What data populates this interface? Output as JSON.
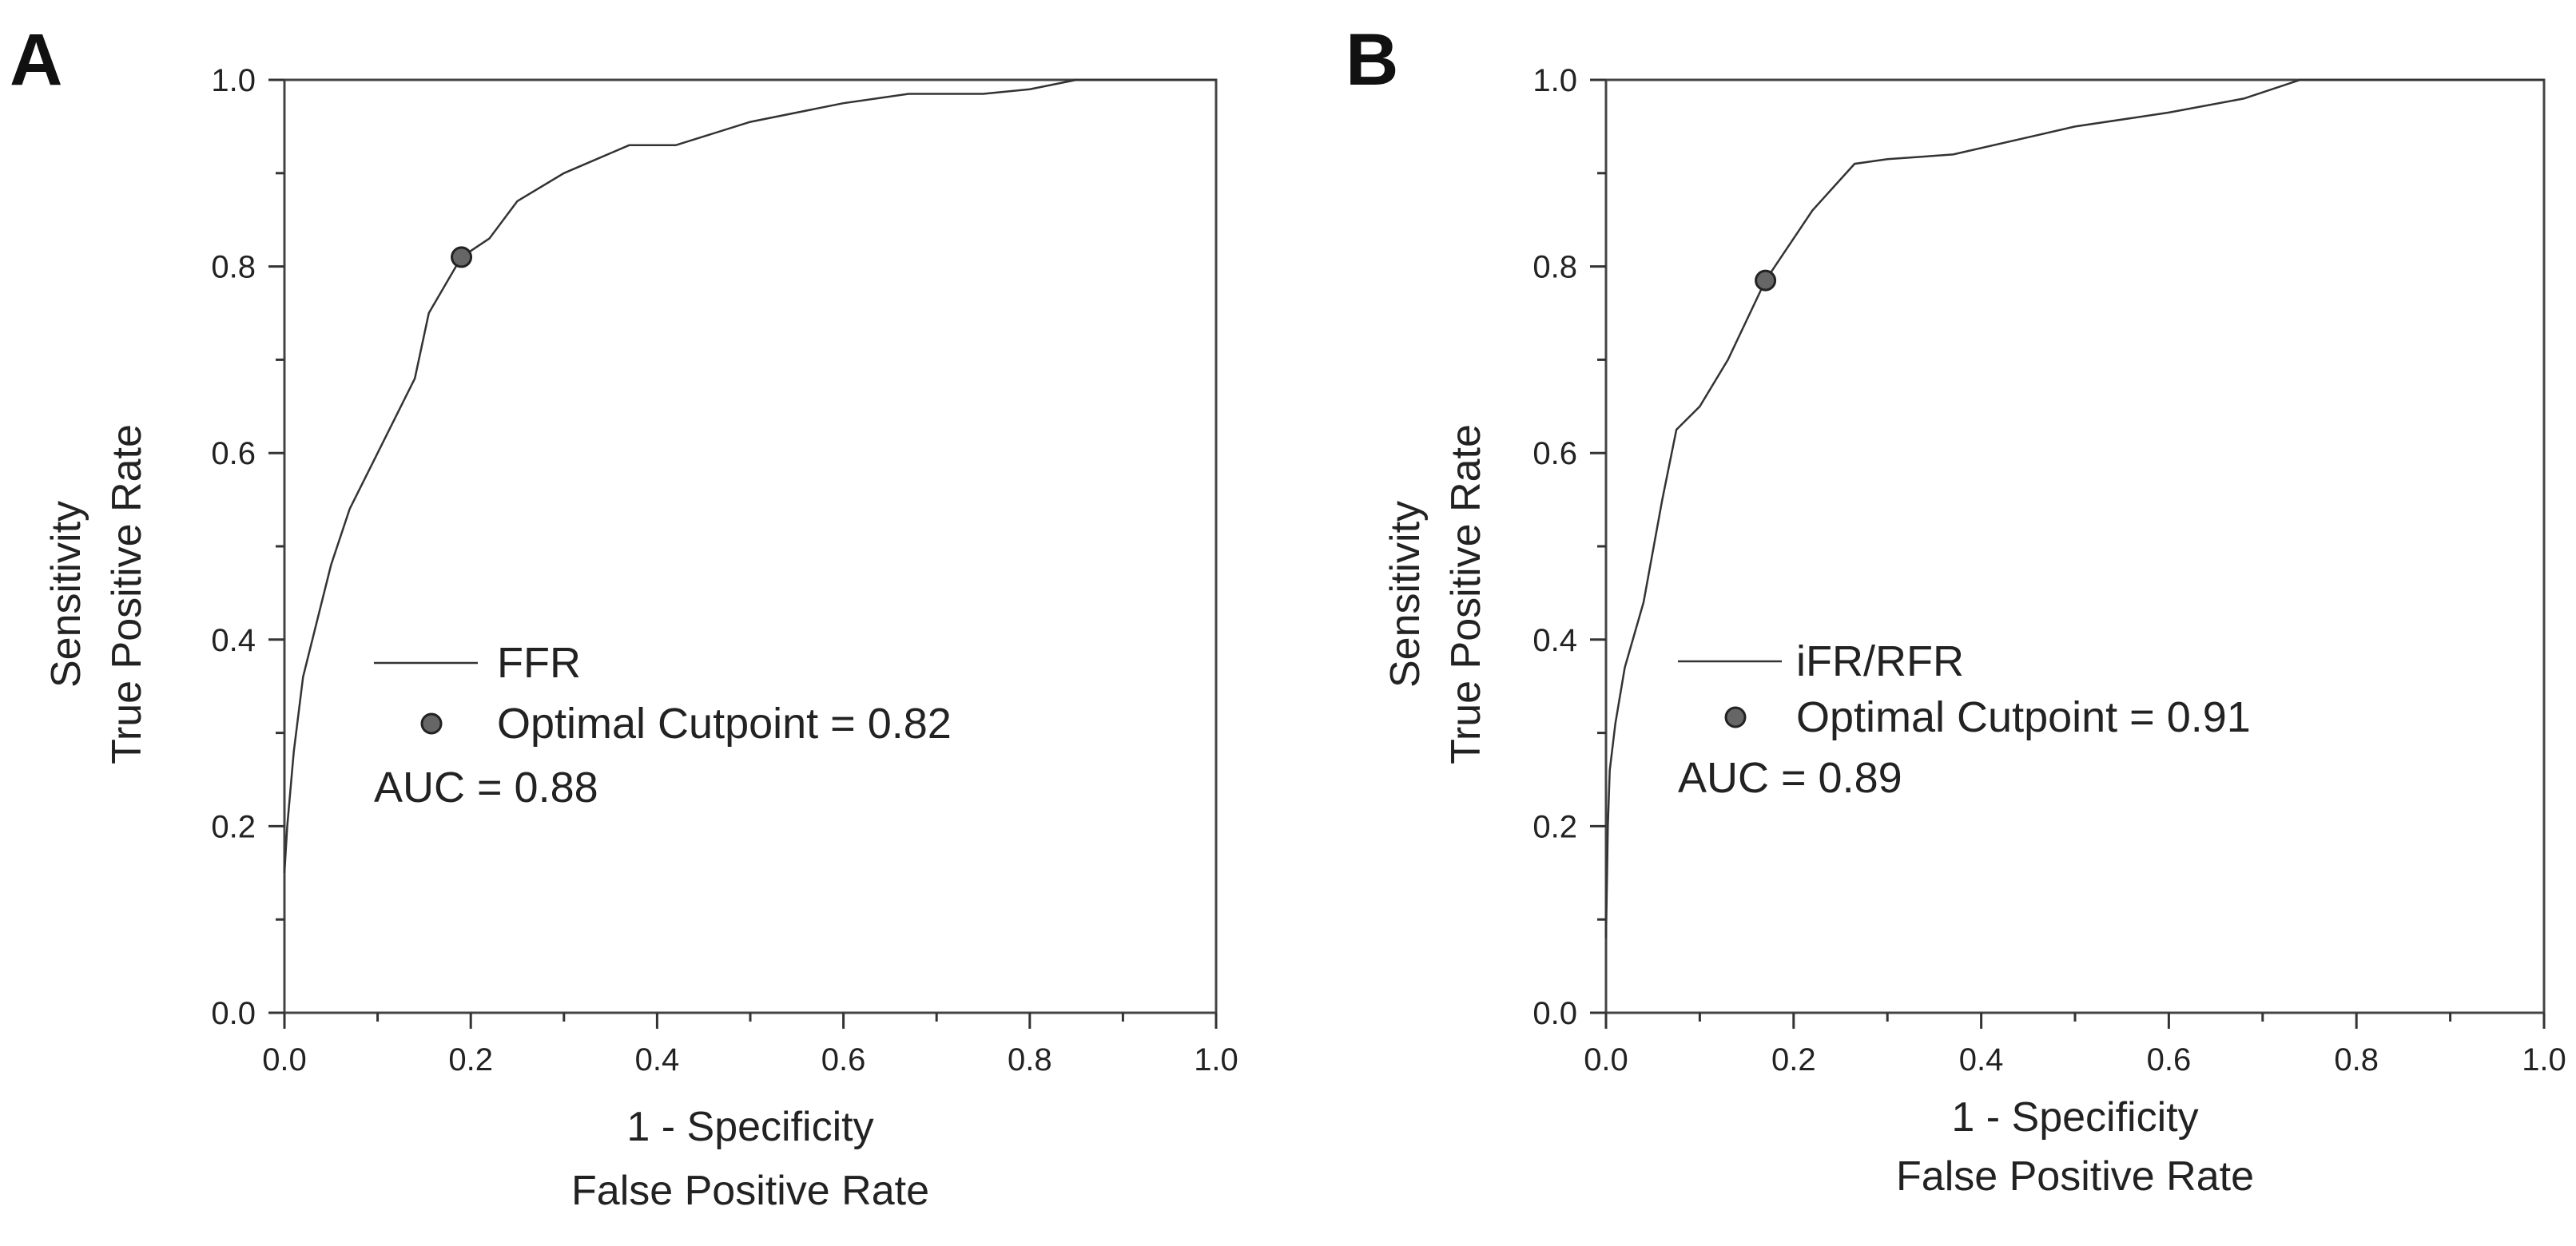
{
  "chart_data": [
    {
      "type": "line",
      "panel_label": "A",
      "xlabel": [
        "1 - Specificity",
        "False Positive Rate"
      ],
      "ylabel": [
        "Sensitivity",
        "True Positive Rate"
      ],
      "xlim": [
        0,
        1
      ],
      "ylim": [
        0,
        1
      ],
      "xticks": [
        "0.0",
        "0.2",
        "0.4",
        "0.6",
        "0.8",
        "1.0"
      ],
      "yticks": [
        "0.0",
        "0.2",
        "0.4",
        "0.6",
        "0.8",
        "1.0"
      ],
      "series": [
        {
          "name": "FFR",
          "x": [
            0.0,
            0.003,
            0.01,
            0.02,
            0.035,
            0.05,
            0.07,
            0.1,
            0.14,
            0.155,
            0.19,
            0.22,
            0.25,
            0.3,
            0.37,
            0.42,
            0.5,
            0.6,
            0.67,
            0.75,
            0.8,
            0.85,
            0.9,
            1.0
          ],
          "y": [
            0.15,
            0.2,
            0.28,
            0.36,
            0.42,
            0.48,
            0.54,
            0.6,
            0.68,
            0.75,
            0.81,
            0.83,
            0.87,
            0.9,
            0.93,
            0.93,
            0.955,
            0.975,
            0.985,
            0.985,
            0.99,
            1.0,
            1.0,
            1.0
          ]
        }
      ],
      "points": [
        {
          "name": "Optimal Cutpoint = 0.82",
          "x": 0.19,
          "y": 0.81
        }
      ],
      "annotation": "AUC = 0.88",
      "legend_position": "center-left"
    },
    {
      "type": "line",
      "panel_label": "B",
      "xlabel": [
        "1 - Specificity",
        "False Positive Rate"
      ],
      "ylabel": [
        "Sensitivity",
        "True Positive Rate"
      ],
      "xlim": [
        0,
        1
      ],
      "ylim": [
        0,
        1
      ],
      "xticks": [
        "0.0",
        "0.2",
        "0.4",
        "0.6",
        "0.8",
        "1.0"
      ],
      "yticks": [
        "0.0",
        "0.2",
        "0.4",
        "0.6",
        "0.8",
        "1.0"
      ],
      "series": [
        {
          "name": "iFR/RFR",
          "x": [
            0.0,
            0.002,
            0.004,
            0.01,
            0.02,
            0.04,
            0.06,
            0.075,
            0.1,
            0.13,
            0.17,
            0.22,
            0.265,
            0.3,
            0.37,
            0.5,
            0.6,
            0.68,
            0.74,
            0.8,
            1.0
          ],
          "y": [
            0.08,
            0.2,
            0.26,
            0.31,
            0.37,
            0.44,
            0.55,
            0.625,
            0.65,
            0.7,
            0.785,
            0.86,
            0.91,
            0.915,
            0.92,
            0.95,
            0.965,
            0.98,
            1.0,
            1.0,
            1.0
          ]
        }
      ],
      "points": [
        {
          "name": "Optimal Cutpoint = 0.91",
          "x": 0.17,
          "y": 0.785
        }
      ],
      "annotation": "AUC = 0.89",
      "legend_position": "center-left"
    }
  ],
  "colors": {
    "line": "#333333",
    "marker_fill": "#666666",
    "marker_stroke": "#222222",
    "frame": "#444444"
  }
}
